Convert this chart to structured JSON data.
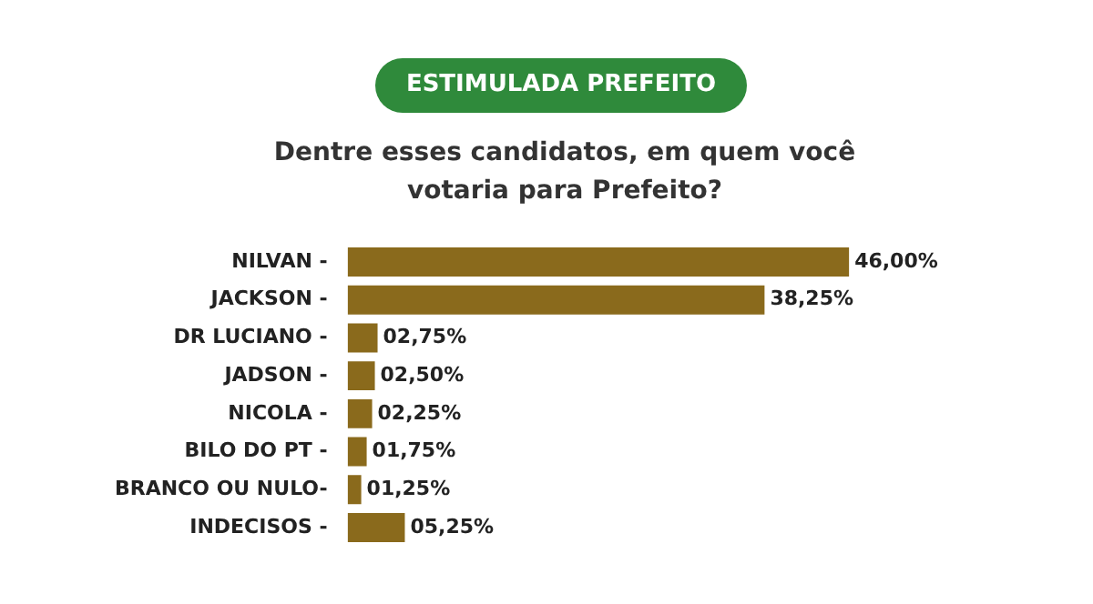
{
  "chart_data": {
    "type": "bar",
    "orientation": "horizontal",
    "title": "ESTIMULADA PREFEITO",
    "subtitle": "Dentre esses candidatos, em quem você votaria para Prefeito?",
    "categories": [
      "NILVAN -",
      "JACKSON -",
      "DR LUCIANO -",
      "JADSON -",
      "NICOLA -",
      "BILO DO PT -",
      "BRANCO OU NULO-",
      "INDECISOS -"
    ],
    "values": [
      46.0,
      38.25,
      2.75,
      2.5,
      2.25,
      1.75,
      1.25,
      5.25
    ],
    "value_labels": [
      "46,00%",
      "38,25%",
      "02,75%",
      "02,50%",
      "02,25%",
      "01,75%",
      "01,25%",
      "05,25%"
    ],
    "color": "#8a6a1c"
  }
}
